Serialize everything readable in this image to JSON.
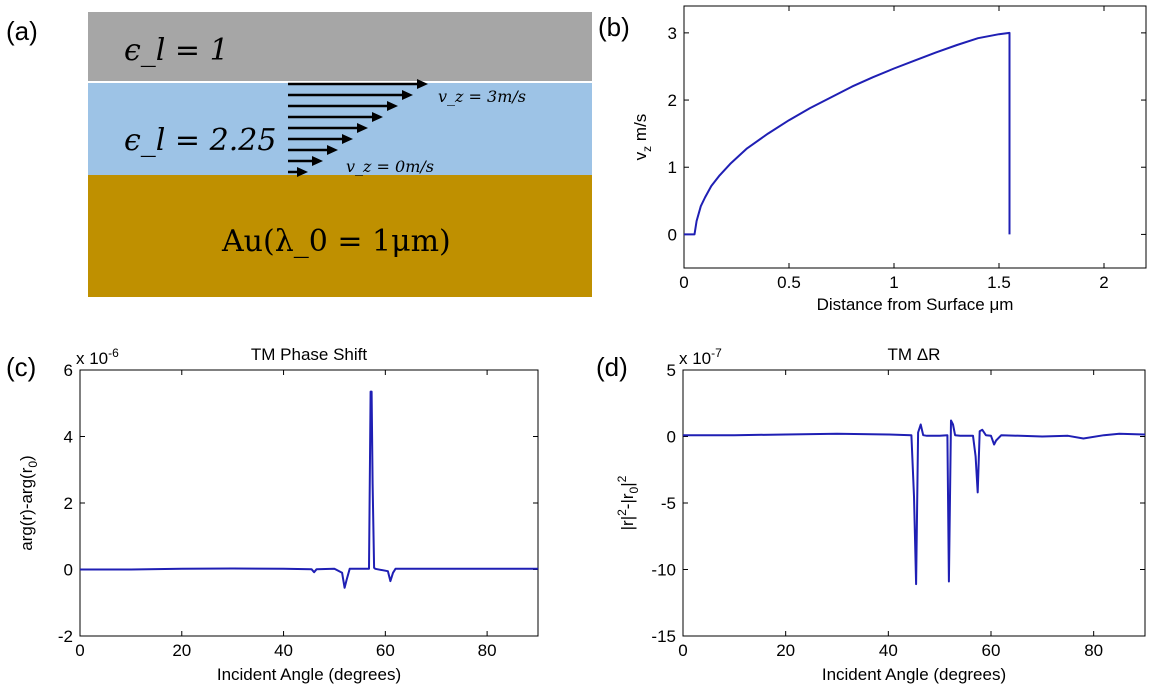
{
  "panels": {
    "a": {
      "label": "(a)",
      "top_layer_text": "ϵ_l = 1",
      "middle_layer_text": "ϵ_l = 2.25",
      "bottom_layer_text": "Au(λ_0 = 1μm)",
      "vz_top_text": "v_z = 3m/s",
      "vz_bottom_text": "v_z = 0m/s",
      "colors": {
        "top": "#a6a6a6",
        "middle": "#9dc3e6",
        "bottom": "#bf9000"
      }
    },
    "b": {
      "label": "(b)"
    },
    "c": {
      "label": "(c)"
    },
    "d": {
      "label": "(d)"
    }
  },
  "chart_data": [
    {
      "id": "b",
      "type": "line",
      "title": "",
      "xlabel": "Distance from Surface μm",
      "ylabel": "v_z m/s",
      "xlim": [
        0,
        2.2
      ],
      "ylim": [
        -0.5,
        3.4
      ],
      "xticks": [
        0,
        0.5,
        1,
        1.5,
        2
      ],
      "xtick_labels": [
        "0",
        "0.5",
        "1",
        "1.5",
        "2"
      ],
      "yticks": [
        0,
        1,
        2,
        3
      ],
      "ytick_labels": [
        "0",
        "1",
        "2",
        "3"
      ],
      "grid": false,
      "color": "#1f1fb4",
      "series": [
        {
          "x": [
            0,
            0.05,
            0.06,
            0.08,
            0.1,
            0.13,
            0.17,
            0.22,
            0.3,
            0.4,
            0.5,
            0.6,
            0.7,
            0.8,
            0.9,
            1.0,
            1.1,
            1.2,
            1.3,
            1.4,
            1.5,
            1.55,
            1.55
          ],
          "y": [
            0,
            0,
            0.2,
            0.42,
            0.55,
            0.72,
            0.88,
            1.05,
            1.28,
            1.5,
            1.7,
            1.88,
            2.04,
            2.2,
            2.34,
            2.47,
            2.59,
            2.71,
            2.82,
            2.92,
            2.98,
            3.0,
            0
          ]
        }
      ]
    },
    {
      "id": "c",
      "type": "line",
      "title": "TM Phase Shift",
      "xlabel": "Incident Angle (degrees)",
      "ylabel": "arg(r)-arg(r_0)",
      "multiplier": "x 10^-6",
      "xlim": [
        0,
        90
      ],
      "ylim": [
        -2,
        6
      ],
      "xticks": [
        0,
        20,
        40,
        60,
        80
      ],
      "xtick_labels": [
        "0",
        "20",
        "40",
        "60",
        "80"
      ],
      "yticks": [
        -2,
        0,
        2,
        4,
        6
      ],
      "ytick_labels": [
        "-2",
        "0",
        "2",
        "4",
        "6"
      ],
      "grid": false,
      "color": "#1f1fb4",
      "series": [
        {
          "x": [
            0,
            10,
            20,
            30,
            40,
            45.5,
            46,
            46.5,
            50,
            51.5,
            52,
            52.4,
            53,
            56.8,
            57.1,
            57.3,
            57.5,
            57.8,
            58,
            60.5,
            61,
            61.5,
            62,
            70,
            80,
            90
          ],
          "y": [
            0,
            0,
            0.02,
            0.03,
            0.02,
            0.01,
            -0.08,
            0.01,
            0.02,
            -0.1,
            -0.55,
            -0.3,
            0.02,
            0.02,
            5.35,
            5.35,
            2.6,
            0.05,
            0.02,
            -0.05,
            -0.35,
            -0.1,
            0.02,
            0.02,
            0.02,
            0.02
          ]
        }
      ]
    },
    {
      "id": "d",
      "type": "line",
      "title": "TM ΔR",
      "xlabel": "Incident Angle (degrees)",
      "ylabel": "|r|^2-|r_0|^2",
      "multiplier": "x 10^-7",
      "xlim": [
        0,
        90
      ],
      "ylim": [
        -15,
        5
      ],
      "xticks": [
        0,
        20,
        40,
        60,
        80
      ],
      "xtick_labels": [
        "0",
        "20",
        "40",
        "60",
        "80"
      ],
      "yticks": [
        -15,
        -10,
        -5,
        0,
        5
      ],
      "ytick_labels": [
        "-15",
        "-10",
        "-5",
        "0",
        "5"
      ],
      "grid": false,
      "color": "#1f1fb4",
      "series": [
        {
          "x": [
            0,
            10,
            20,
            30,
            40,
            44.5,
            45,
            45.4,
            45.8,
            46.3,
            46.8,
            47.5,
            50,
            51.5,
            51.8,
            52.2,
            52.6,
            53,
            54,
            56.5,
            57,
            57.4,
            57.8,
            58.3,
            59,
            60,
            60.6,
            61,
            62,
            70,
            75,
            78,
            82,
            85,
            90
          ],
          "y": [
            0.1,
            0.1,
            0.15,
            0.2,
            0.15,
            0.1,
            -4.5,
            -11.1,
            0.3,
            0.9,
            0.1,
            0.05,
            0.05,
            0.1,
            -10.9,
            1.2,
            0.9,
            0.1,
            0.05,
            0.05,
            -1.5,
            -4.2,
            0.4,
            0.5,
            0.1,
            0.05,
            -0.6,
            -0.3,
            0.1,
            0.0,
            0.05,
            -0.15,
            0.1,
            0.2,
            0.15
          ]
        }
      ]
    }
  ]
}
